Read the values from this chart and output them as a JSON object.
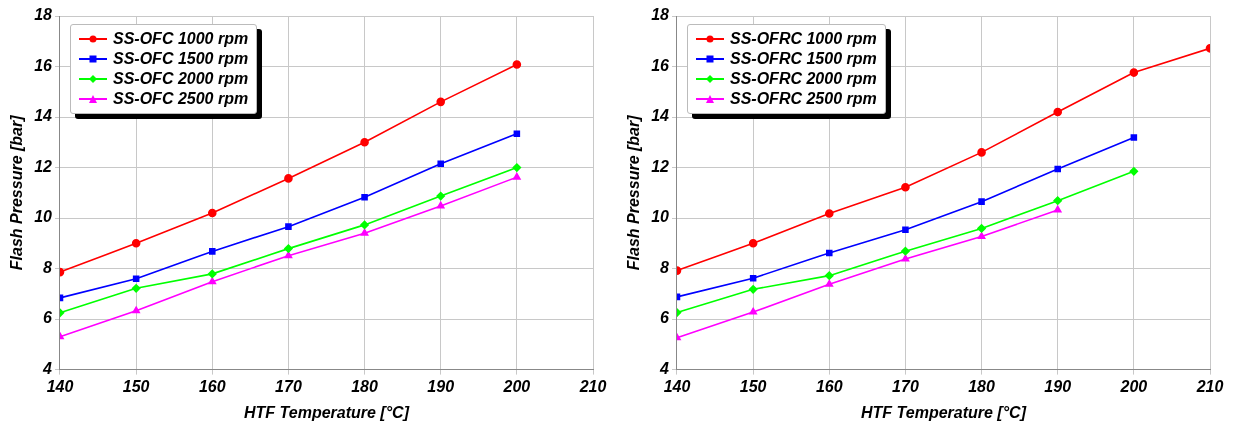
{
  "chart_data": [
    {
      "type": "line",
      "xlabel": "HTF Temperature [°C]",
      "ylabel": "Flash Pressure [bar]",
      "x": [
        140,
        150,
        160,
        170,
        180,
        190,
        200
      ],
      "xlim": [
        140,
        210
      ],
      "xticks": [
        140,
        150,
        160,
        170,
        180,
        190,
        200,
        210
      ],
      "ylim": [
        4,
        18
      ],
      "yticks": [
        4,
        6,
        8,
        10,
        12,
        14,
        16,
        18
      ],
      "grid": true,
      "legend": "top left",
      "line_style": "solid",
      "series": [
        {
          "name": "SS-OFC 1000 rpm",
          "color": "#ff0000",
          "marker": "circle",
          "values": [
            7.86,
            9.0,
            10.2,
            11.57,
            13.0,
            14.6,
            16.08
          ]
        },
        {
          "name": "SS-OFC 1500 rpm",
          "color": "#0000ff",
          "marker": "square",
          "values": [
            6.84,
            7.6,
            8.68,
            9.66,
            10.82,
            12.15,
            13.34
          ]
        },
        {
          "name": "SS-OFC 2000 rpm",
          "color": "#00ff00",
          "marker": "diamond",
          "values": [
            6.25,
            7.22,
            7.79,
            8.79,
            9.73,
            10.87,
            12.0
          ]
        },
        {
          "name": "SS-OFC 2500 rpm",
          "color": "#ff00ff",
          "marker": "triangle",
          "values": [
            5.3,
            6.33,
            7.48,
            8.51,
            9.4,
            10.48,
            11.62
          ]
        }
      ]
    },
    {
      "type": "line",
      "xlabel": "HTF Temperature [°C]",
      "ylabel": "Flash Pressure [bar]",
      "x": [
        140,
        150,
        160,
        170,
        180,
        190,
        200,
        210
      ],
      "xlim": [
        140,
        210
      ],
      "xticks": [
        140,
        150,
        160,
        170,
        180,
        190,
        200,
        210
      ],
      "ylim": [
        4,
        18
      ],
      "yticks": [
        4,
        6,
        8,
        10,
        12,
        14,
        16,
        18
      ],
      "grid": true,
      "legend": "top left",
      "line_style": "solid",
      "series": [
        {
          "name": "SS-OFRC 1000 rpm",
          "color": "#ff0000",
          "marker": "circle",
          "values": [
            7.92,
            9.0,
            10.18,
            11.22,
            12.6,
            14.2,
            15.76,
            16.72
          ]
        },
        {
          "name": "SS-OFRC 1500 rpm",
          "color": "#0000ff",
          "marker": "square",
          "values": [
            6.88,
            7.62,
            8.62,
            9.54,
            10.65,
            11.94,
            13.19,
            null
          ]
        },
        {
          "name": "SS-OFRC 2000 rpm",
          "color": "#00ff00",
          "marker": "diamond",
          "values": [
            6.26,
            7.18,
            7.72,
            8.69,
            9.59,
            10.69,
            11.85,
            null
          ]
        },
        {
          "name": "SS-OFRC 2500 rpm",
          "color": "#ff00ff",
          "marker": "triangle",
          "values": [
            5.26,
            6.28,
            7.38,
            8.38,
            9.27,
            10.32,
            null,
            null
          ]
        }
      ]
    }
  ]
}
